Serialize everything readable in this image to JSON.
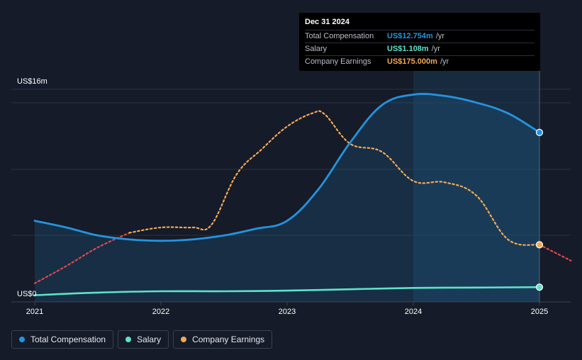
{
  "colors": {
    "total": "#2394df",
    "salary": "#5ee3c8",
    "earnings": "#f3a953",
    "earnings_negative": "#e04848"
  },
  "tooltip": {
    "date": "Dec 31 2024",
    "rows": [
      {
        "label": "Total Compensation",
        "value": "US$12.754m",
        "unit": "/yr",
        "color": "#2394df"
      },
      {
        "label": "Salary",
        "value": "US$1.108m",
        "unit": "/yr",
        "color": "#5ee3c8"
      },
      {
        "label": "Company Earnings",
        "value": "US$175.000m",
        "unit": "/yr",
        "color": "#f3a953"
      }
    ]
  },
  "legend": [
    {
      "label": "Total Compensation",
      "color": "#2394df"
    },
    {
      "label": "Salary",
      "color": "#5ee3c8"
    },
    {
      "label": "Company Earnings",
      "color": "#f3a953"
    }
  ],
  "chart_data": {
    "type": "line",
    "title": "",
    "xlabel": "",
    "ylabel": "",
    "y_top_label": "US$16m",
    "y_bottom_label": "US$0",
    "ylim": [
      0,
      16
    ],
    "xlim": [
      2021.0,
      2025.25
    ],
    "x_ticks": [
      "2021",
      "2022",
      "2023",
      "2024",
      "2025"
    ],
    "grid": true,
    "series": [
      {
        "name": "Total Compensation",
        "unit": "US$m",
        "x": [
          2021.0,
          2021.25,
          2021.5,
          2021.75,
          2022.0,
          2022.25,
          2022.5,
          2022.75,
          2023.0,
          2023.25,
          2023.5,
          2023.75,
          2024.0,
          2024.25,
          2024.5,
          2024.75,
          2025.0
        ],
        "values": [
          6.1,
          5.6,
          5.0,
          4.7,
          4.6,
          4.7,
          5.0,
          5.5,
          6.1,
          8.5,
          12.0,
          14.8,
          15.6,
          15.5,
          15.0,
          14.2,
          12.754
        ]
      },
      {
        "name": "Salary",
        "unit": "US$m",
        "x": [
          2021.0,
          2021.5,
          2022.0,
          2022.5,
          2023.0,
          2023.5,
          2024.0,
          2024.5,
          2025.0
        ],
        "values": [
          0.5,
          0.7,
          0.8,
          0.8,
          0.85,
          0.95,
          1.05,
          1.08,
          1.108
        ]
      },
      {
        "name": "Company Earnings",
        "unit": "US$m",
        "negative_segment_until": 2021.6,
        "x": [
          2021.0,
          2021.25,
          2021.5,
          2021.75,
          2022.0,
          2022.25,
          2022.4,
          2022.6,
          2022.8,
          2023.0,
          2023.2,
          2023.3,
          2023.5,
          2023.75,
          2024.0,
          2024.25,
          2024.5,
          2024.75,
          2025.0,
          2025.25
        ],
        "values": [
          1.4,
          2.7,
          4.1,
          5.2,
          5.6,
          5.6,
          5.8,
          9.6,
          11.5,
          13.2,
          14.2,
          14.1,
          11.9,
          11.3,
          9.1,
          9.0,
          8.0,
          4.7,
          4.3,
          3.1
        ]
      }
    ],
    "tooltip_x": 2025.0
  }
}
